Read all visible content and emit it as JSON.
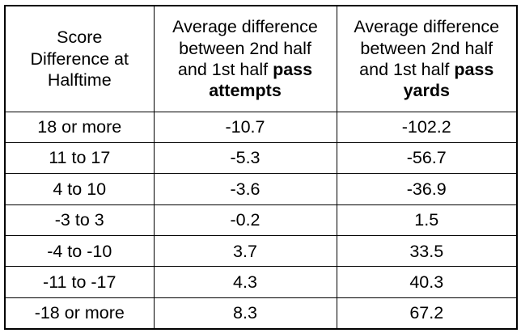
{
  "table": {
    "headers": {
      "col1": [
        "Score",
        "Difference at",
        "Halftime"
      ],
      "col2": {
        "line1": "Average difference",
        "line2": "between 2nd half",
        "line3_plain": "and 1st half ",
        "line3_bold": "pass",
        "line4_bold": "attempts"
      },
      "col3": {
        "line1": "Average difference",
        "line2": "between 2nd half",
        "line3_plain": "and 1st half ",
        "line3_bold": "pass",
        "line4_bold": "yards"
      }
    },
    "rows": [
      {
        "score": "18 or more",
        "attempts": "-10.7",
        "yards": "-102.2"
      },
      {
        "score": "11 to 17",
        "attempts": "-5.3",
        "yards": "-56.7"
      },
      {
        "score": "4 to 10",
        "attempts": "-3.6",
        "yards": "-36.9"
      },
      {
        "score": "-3 to 3",
        "attempts": "-0.2",
        "yards": "1.5"
      },
      {
        "score": "-4 to -10",
        "attempts": "3.7",
        "yards": "33.5"
      },
      {
        "score": "-11 to -17",
        "attempts": "4.3",
        "yards": "40.3"
      },
      {
        "score": "-18 or more",
        "attempts": "8.3",
        "yards": "67.2"
      }
    ]
  }
}
